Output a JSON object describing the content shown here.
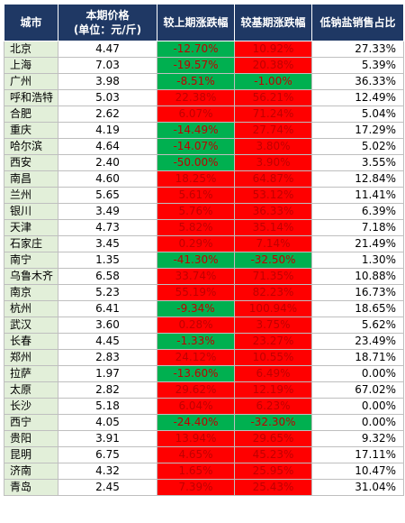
{
  "colors": {
    "header_bg": "#1f3864",
    "city_bg": "#e2efd9",
    "up_bg": "#ff0000",
    "down_bg": "#00b050",
    "change_text": "#c00000"
  },
  "headers": {
    "city": "城市",
    "price_line1": "本期价格",
    "price_line2": "(单位：元/斤)",
    "chg_prev": "较上期涨跌幅",
    "chg_base": "较基期涨跌幅",
    "share": "低钠盐销售占比"
  },
  "rows": [
    {
      "city": "北京",
      "price": "4.47",
      "chg_prev": "-12.70%",
      "chg_base": "10.92%",
      "share": "27.33%"
    },
    {
      "city": "上海",
      "price": "7.03",
      "chg_prev": "-19.57%",
      "chg_base": "20.38%",
      "share": "5.39%"
    },
    {
      "city": "广州",
      "price": "3.98",
      "chg_prev": "-8.51%",
      "chg_base": "-1.00%",
      "share": "36.33%"
    },
    {
      "city": "呼和浩特",
      "price": "5.03",
      "chg_prev": "22.38%",
      "chg_base": "56.21%",
      "share": "12.49%"
    },
    {
      "city": "合肥",
      "price": "2.62",
      "chg_prev": "6.07%",
      "chg_base": "71.24%",
      "share": "5.04%"
    },
    {
      "city": "重庆",
      "price": "4.19",
      "chg_prev": "-14.49%",
      "chg_base": "27.74%",
      "share": "17.29%"
    },
    {
      "city": "哈尔滨",
      "price": "4.64",
      "chg_prev": "-14.07%",
      "chg_base": "3.80%",
      "share": "5.02%"
    },
    {
      "city": "西安",
      "price": "2.40",
      "chg_prev": "-50.00%",
      "chg_base": "3.90%",
      "share": "3.55%"
    },
    {
      "city": "南昌",
      "price": "4.60",
      "chg_prev": "18.25%",
      "chg_base": "64.87%",
      "share": "12.84%"
    },
    {
      "city": "兰州",
      "price": "5.65",
      "chg_prev": "5.61%",
      "chg_base": "53.12%",
      "share": "11.41%"
    },
    {
      "city": "银川",
      "price": "3.49",
      "chg_prev": "5.76%",
      "chg_base": "36.33%",
      "share": "6.39%"
    },
    {
      "city": "天津",
      "price": "4.73",
      "chg_prev": "5.82%",
      "chg_base": "35.14%",
      "share": "7.18%"
    },
    {
      "city": "石家庄",
      "price": "3.45",
      "chg_prev": "0.29%",
      "chg_base": "7.14%",
      "share": "21.49%"
    },
    {
      "city": "南宁",
      "price": "1.35",
      "chg_prev": "-41.30%",
      "chg_base": "-32.50%",
      "share": "1.30%"
    },
    {
      "city": "乌鲁木齐",
      "price": "6.58",
      "chg_prev": "33.74%",
      "chg_base": "71.35%",
      "share": "10.88%"
    },
    {
      "city": "南京",
      "price": "5.23",
      "chg_prev": "55.19%",
      "chg_base": "82.23%",
      "share": "16.73%"
    },
    {
      "city": "杭州",
      "price": "6.41",
      "chg_prev": "-9.34%",
      "chg_base": "100.94%",
      "share": "18.65%"
    },
    {
      "city": "武汉",
      "price": "3.60",
      "chg_prev": "0.28%",
      "chg_base": "3.75%",
      "share": "5.62%"
    },
    {
      "city": "长春",
      "price": "4.45",
      "chg_prev": "-1.33%",
      "chg_base": "23.27%",
      "share": "23.49%"
    },
    {
      "city": "郑州",
      "price": "2.83",
      "chg_prev": "24.12%",
      "chg_base": "10.55%",
      "share": "18.71%"
    },
    {
      "city": "拉萨",
      "price": "1.97",
      "chg_prev": "-13.60%",
      "chg_base": "6.49%",
      "share": "0.00%"
    },
    {
      "city": "太原",
      "price": "2.82",
      "chg_prev": "29.62%",
      "chg_base": "12.19%",
      "share": "67.02%"
    },
    {
      "city": "长沙",
      "price": "5.18",
      "chg_prev": "6.04%",
      "chg_base": "6.23%",
      "share": "0.00%"
    },
    {
      "city": "西宁",
      "price": "4.05",
      "chg_prev": "-24.40%",
      "chg_base": "-32.30%",
      "share": "0.00%"
    },
    {
      "city": "贵阳",
      "price": "3.91",
      "chg_prev": "13.94%",
      "chg_base": "29.65%",
      "share": "9.32%"
    },
    {
      "city": "昆明",
      "price": "6.75",
      "chg_prev": "4.65%",
      "chg_base": "45.23%",
      "share": "17.11%"
    },
    {
      "city": "济南",
      "price": "4.32",
      "chg_prev": "1.65%",
      "chg_base": "25.95%",
      "share": "10.47%"
    },
    {
      "city": "青岛",
      "price": "2.45",
      "chg_prev": "7.39%",
      "chg_base": "25.43%",
      "share": "31.04%"
    }
  ]
}
